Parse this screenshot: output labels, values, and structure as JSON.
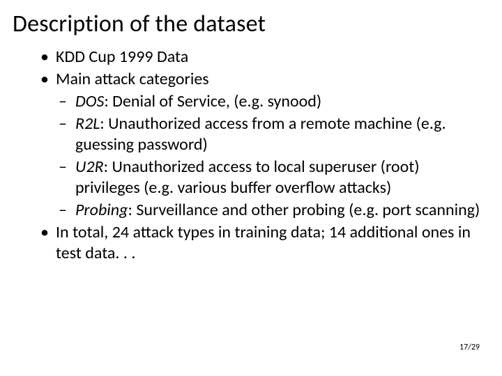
{
  "title": "Description of the dataset",
  "bullets": {
    "b1": "KDD Cup 1999 Data",
    "b2": "Main attack categories",
    "s1_label": "DOS",
    "s1_rest": ":  Denial of Service, (e.g. synood)",
    "s2_label": "R2L",
    "s2_rest": ":  Unauthorized access from a remote machine (e.g. guessing password)",
    "s3_label": "U2R",
    "s3_rest": ":  Unauthorized access to local superuser (root) privileges (e.g. various buffer overflow attacks)",
    "s4_label": "Probing",
    "s4_rest": ":  Surveillance and other probing (e.g. port scanning)",
    "b3": "In total, 24 attack types in training data; 14 additional ones in test data. . ."
  },
  "page": "17/29"
}
